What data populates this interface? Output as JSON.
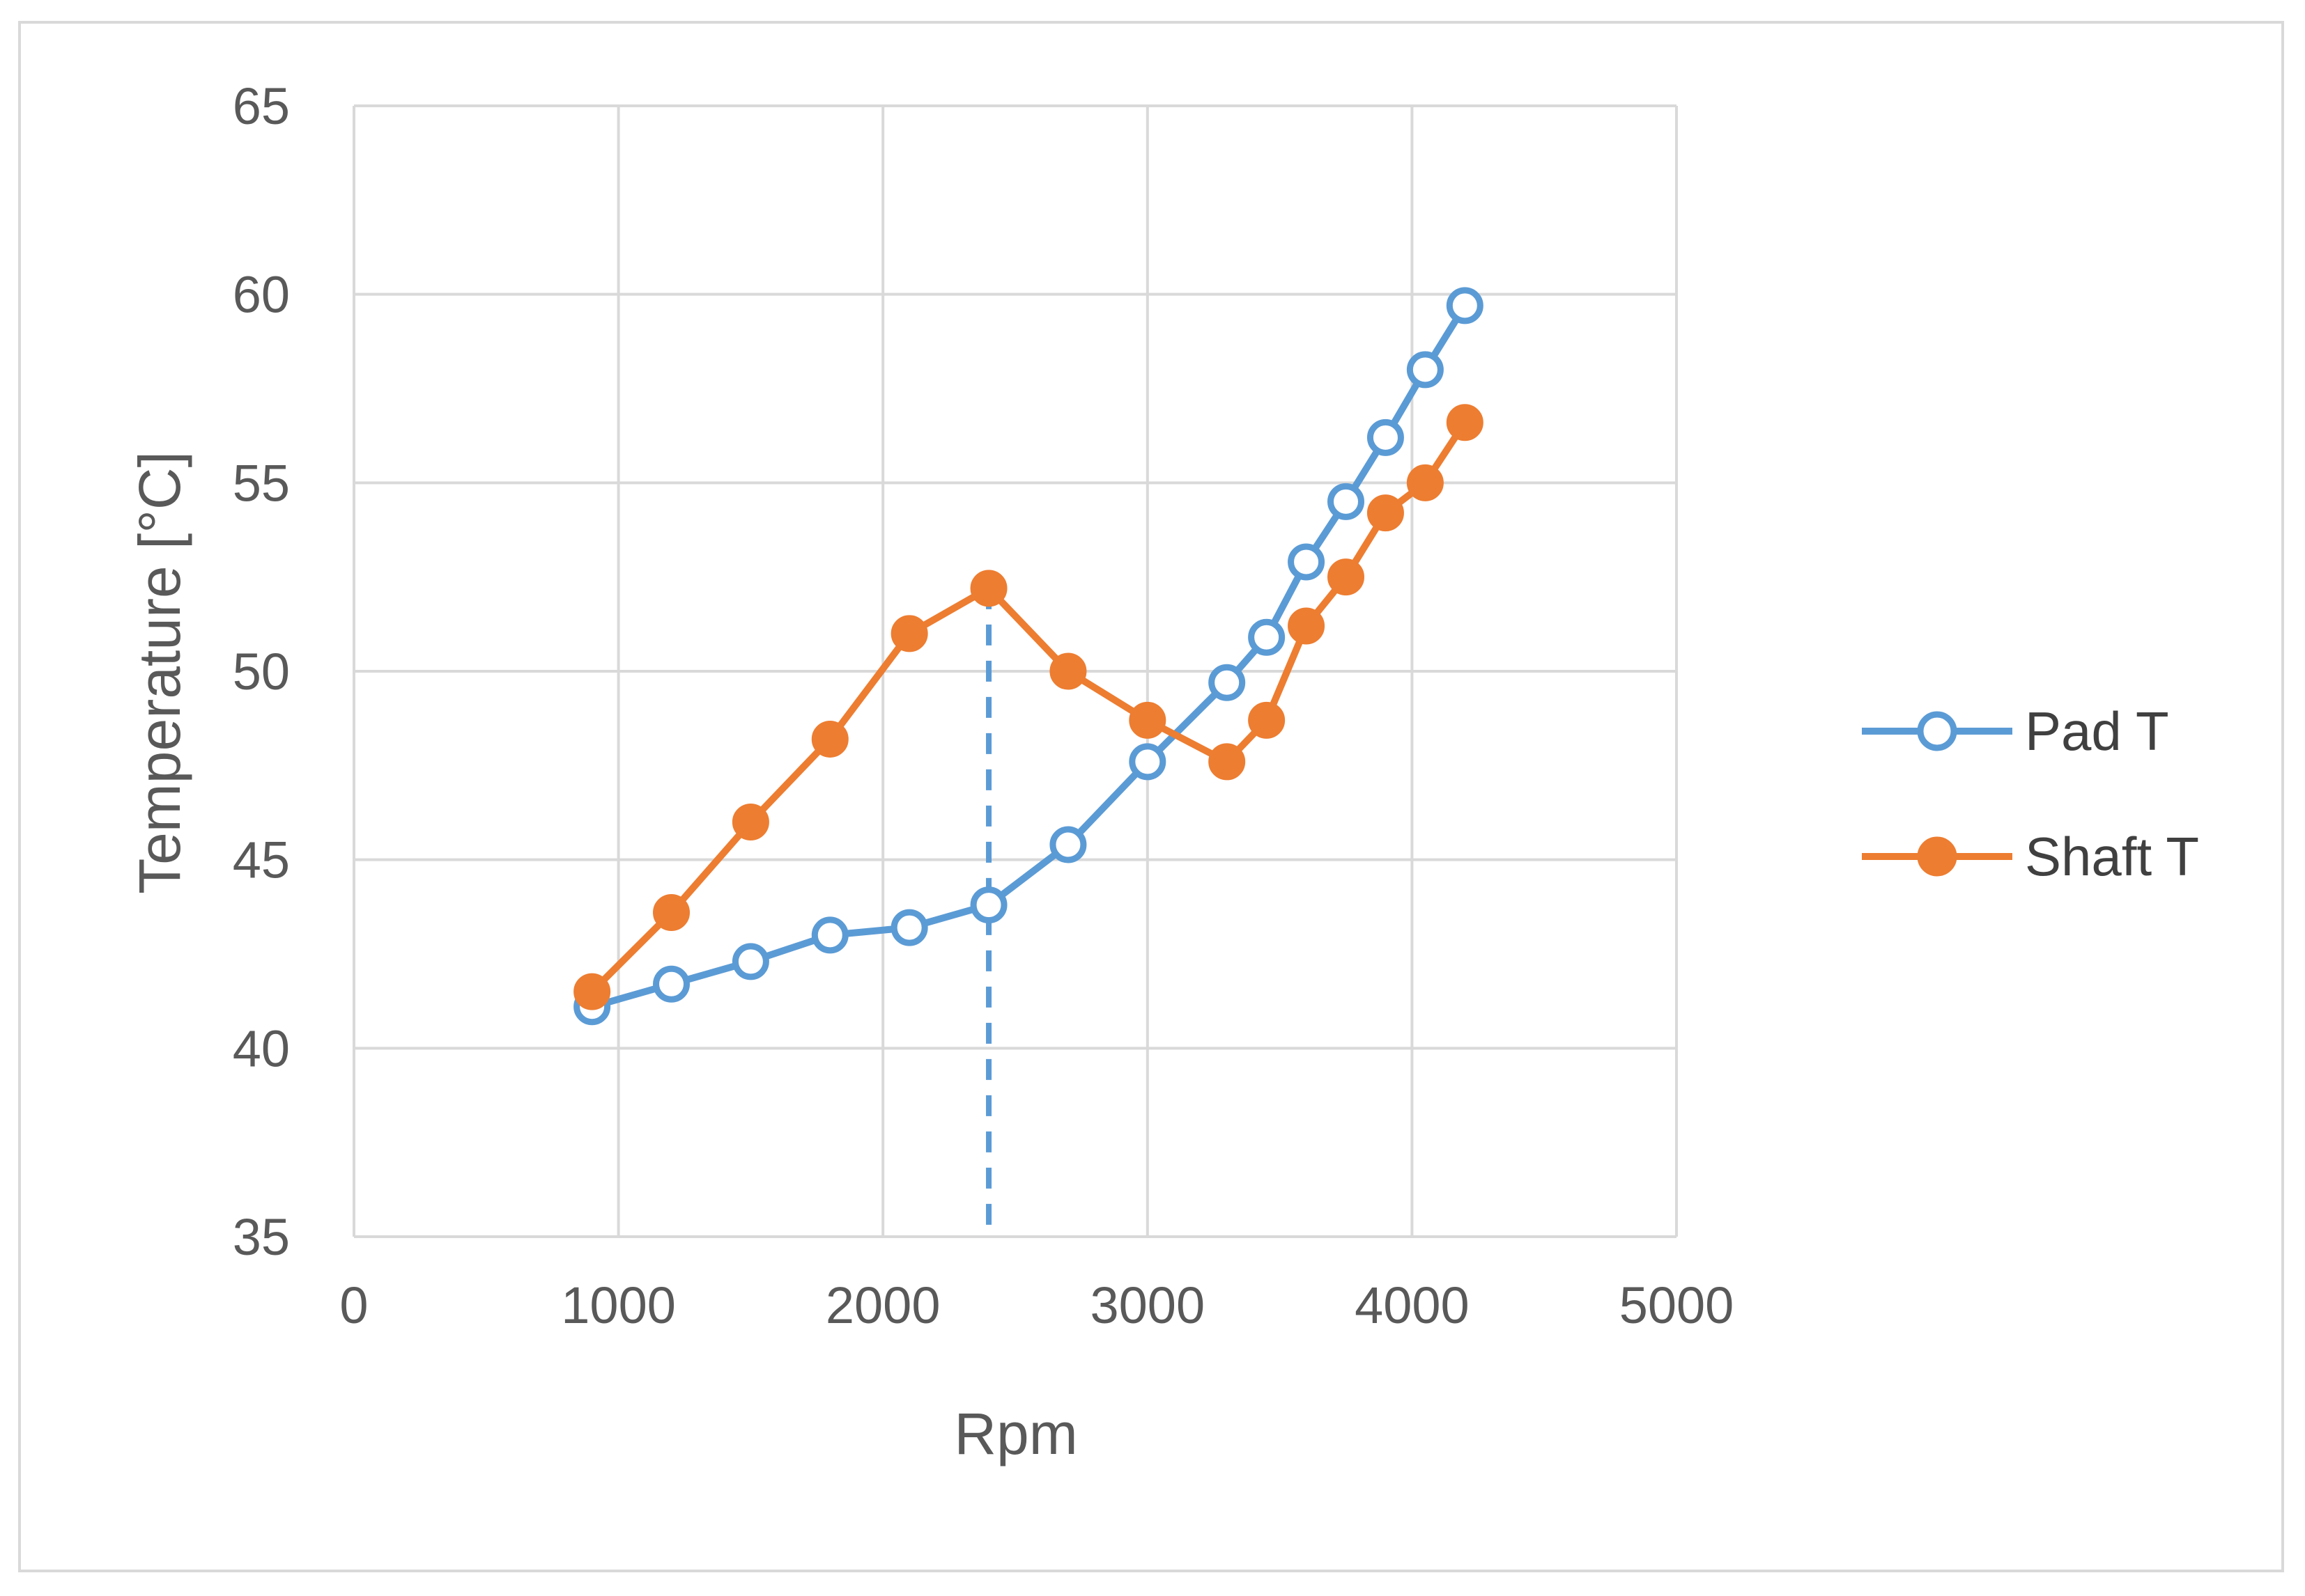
{
  "chart_data": {
    "type": "line",
    "title": "",
    "xlabel": "Rpm",
    "ylabel": "Temperature [°C]",
    "xlim": [
      0,
      5000
    ],
    "ylim": [
      35,
      65
    ],
    "xticks": [
      0,
      1000,
      2000,
      3000,
      4000,
      5000
    ],
    "yticks": [
      35,
      40,
      45,
      50,
      55,
      60,
      65
    ],
    "grid": true,
    "legend_position": "right",
    "series": [
      {
        "name": "Pad T",
        "color": "#5b9bd5",
        "marker": "open-circle",
        "x": [
          900,
          1200,
          1500,
          1800,
          2100,
          2400,
          2700,
          3000,
          3300,
          3450,
          3600,
          3750,
          3900,
          4050,
          4200
        ],
        "y": [
          41.1,
          41.7,
          42.3,
          43.0,
          43.2,
          43.8,
          45.4,
          47.6,
          49.7,
          50.9,
          52.9,
          54.5,
          56.2,
          58.0,
          59.7
        ]
      },
      {
        "name": "Shaft T",
        "color": "#ed7d31",
        "marker": "filled-circle",
        "x": [
          900,
          1200,
          1500,
          1800,
          2100,
          2400,
          2700,
          3000,
          3300,
          3450,
          3600,
          3750,
          3900,
          4050,
          4200
        ],
        "y": [
          41.5,
          43.6,
          46.0,
          48.2,
          51.0,
          52.2,
          50.0,
          48.7,
          47.6,
          48.7,
          51.2,
          52.5,
          54.2,
          55.0,
          56.6
        ]
      }
    ],
    "annotations": [
      {
        "type": "vertical-dashed-line",
        "x": 2400,
        "y_from": 35,
        "y_to": 52.2,
        "color": "#5b9bd5"
      }
    ]
  }
}
